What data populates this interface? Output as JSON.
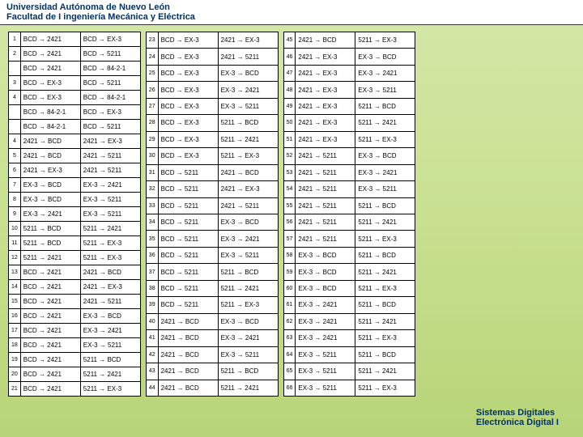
{
  "header": {
    "line1": "Universidad Autónoma de Nuevo León",
    "line2": "Facultad de I ingeniería Mecánica y Eléctrica"
  },
  "footer": {
    "line1": "Sistemas Digitales",
    "line2": "Electrónica Digital I"
  },
  "columns": [
    [
      {
        "n": "1",
        "a": "BCD → 2421",
        "b": "BCD → EX-3"
      },
      {
        "n": "2",
        "a": "BCD → 2421",
        "b": "BCD → 5211"
      },
      {
        "n": "",
        "a": "BCD → 2421",
        "b": "BCD → 84-2-1"
      },
      {
        "n": "3",
        "a": "BCD → EX-3",
        "b": "BCD → 5211"
      },
      {
        "n": "4",
        "a": "BCD → EX-3",
        "b": "BCD → 84-2-1"
      },
      {
        "n": "",
        "a": "BCD → 84-2-1",
        "b": "BCD → EX-3"
      },
      {
        "n": "",
        "a": "BCD → 84-2-1",
        "b": "BCD → 5211"
      },
      {
        "n": "4",
        "a": "2421 → BCD",
        "b": "2421 → EX-3"
      },
      {
        "n": "5",
        "a": "2421 → BCD",
        "b": "2421 → 5211"
      },
      {
        "n": "6",
        "a": "2421 → EX-3",
        "b": "2421 → 5211"
      },
      {
        "n": "7",
        "a": "EX-3 → BCD",
        "b": "EX-3 → 2421"
      },
      {
        "n": "8",
        "a": "EX-3 → BCD",
        "b": "EX-3 → 5211"
      },
      {
        "n": "9",
        "a": "EX-3 → 2421",
        "b": "EX-3 → 5211"
      },
      {
        "n": "10",
        "a": "5211 → BCD",
        "b": "5211 → 2421"
      },
      {
        "n": "11",
        "a": "5211 → BCD",
        "b": "5211 → EX-3"
      },
      {
        "n": "12",
        "a": "5211 → 2421",
        "b": "5211 → EX-3"
      },
      {
        "n": "13",
        "a": "BCD → 2421",
        "b": "2421 → BCD"
      },
      {
        "n": "14",
        "a": "BCD → 2421",
        "b": "2421 → EX-3"
      },
      {
        "n": "15",
        "a": "BCD → 2421",
        "b": "2421 → 5211"
      },
      {
        "n": "16",
        "a": "BCD → 2421",
        "b": "EX-3 → BCD"
      },
      {
        "n": "17",
        "a": "BCD → 2421",
        "b": "EX-3 → 2421"
      },
      {
        "n": "18",
        "a": "BCD → 2421",
        "b": "EX-3 → 5211"
      },
      {
        "n": "19",
        "a": "BCD → 2421",
        "b": "5211 → BCD"
      },
      {
        "n": "20",
        "a": "BCD → 2421",
        "b": "5211 → 2421"
      },
      {
        "n": "21",
        "a": "BCD → 2421",
        "b": "5211 → EX-3"
      }
    ],
    [
      {
        "n": "23",
        "a": "BCD → EX-3",
        "b": "2421 → EX-3"
      },
      {
        "n": "24",
        "a": "BCD → EX-3",
        "b": "2421 → 5211"
      },
      {
        "n": "25",
        "a": "BCD → EX-3",
        "b": "EX-3 → BCD"
      },
      {
        "n": "26",
        "a": "BCD → EX-3",
        "b": "EX-3 → 2421"
      },
      {
        "n": "27",
        "a": "BCD → EX-3",
        "b": "EX-3 → 5211"
      },
      {
        "n": "28",
        "a": "BCD → EX-3",
        "b": "5211 → BCD"
      },
      {
        "n": "29",
        "a": "BCD → EX-3",
        "b": "5211 → 2421"
      },
      {
        "n": "30",
        "a": "BCD → EX-3",
        "b": "5211 → EX-3"
      },
      {
        "n": "31",
        "a": "BCD → 5211",
        "b": "2421 → BCD"
      },
      {
        "n": "32",
        "a": "BCD → 5211",
        "b": "2421 → EX-3"
      },
      {
        "n": "33",
        "a": "BCD → 5211",
        "b": "2421 → 5211"
      },
      {
        "n": "34",
        "a": "BCD → 5211",
        "b": "EX-3 → BCD"
      },
      {
        "n": "35",
        "a": "BCD → 5211",
        "b": "EX-3 → 2421"
      },
      {
        "n": "36",
        "a": "BCD → 5211",
        "b": "EX-3 → 5211"
      },
      {
        "n": "37",
        "a": "BCD → 5211",
        "b": "5211 → BCD"
      },
      {
        "n": "38",
        "a": "BCD → 5211",
        "b": "5211 → 2421"
      },
      {
        "n": "39",
        "a": "BCD → 5211",
        "b": "5211 → EX-3"
      },
      {
        "n": "40",
        "a": "2421 → BCD",
        "b": "EX-3 → BCD"
      },
      {
        "n": "41",
        "a": "2421 → BCD",
        "b": "EX-3 → 2421"
      },
      {
        "n": "42",
        "a": "2421 → BCD",
        "b": "EX-3 → 5211"
      },
      {
        "n": "43",
        "a": "2421 → BCD",
        "b": "5211 → BCD"
      },
      {
        "n": "44",
        "a": "2421 → BCD",
        "b": "5211 → 2421"
      }
    ],
    [
      {
        "n": "45",
        "a": "2421 → BCD",
        "b": "5211 → EX-3"
      },
      {
        "n": "46",
        "a": "2421 → EX-3",
        "b": "EX-3 → BCD"
      },
      {
        "n": "47",
        "a": "2421 → EX-3",
        "b": "EX-3 → 2421"
      },
      {
        "n": "48",
        "a": "2421 → EX-3",
        "b": "EX-3 → 5211"
      },
      {
        "n": "49",
        "a": "2421 → EX-3",
        "b": "5211 → BCD"
      },
      {
        "n": "50",
        "a": "2421 → EX-3",
        "b": "5211 → 2421"
      },
      {
        "n": "51",
        "a": "2421 → EX-3",
        "b": "5211 → EX-3"
      },
      {
        "n": "52",
        "a": "2421 → 5211",
        "b": "EX-3 → BCD"
      },
      {
        "n": "53",
        "a": "2421 → 5211",
        "b": "EX-3 → 2421"
      },
      {
        "n": "54",
        "a": "2421 → 5211",
        "b": "EX-3 → 5211"
      },
      {
        "n": "55",
        "a": "2421 → 5211",
        "b": "5211 → BCD"
      },
      {
        "n": "56",
        "a": "2421 → 5211",
        "b": "5211 → 2421"
      },
      {
        "n": "57",
        "a": "2421 → 5211",
        "b": "5211 → EX-3"
      },
      {
        "n": "58",
        "a": "EX-3 → BCD",
        "b": "5211 → BCD"
      },
      {
        "n": "59",
        "a": "EX-3 → BCD",
        "b": "5211 → 2421"
      },
      {
        "n": "60",
        "a": "EX-3 → BCD",
        "b": "5211 → EX-3"
      },
      {
        "n": "61",
        "a": "EX-3 → 2421",
        "b": "5211 → BCD"
      },
      {
        "n": "62",
        "a": "EX-3 → 2421",
        "b": "5211 → 2421"
      },
      {
        "n": "63",
        "a": "EX-3 → 2421",
        "b": "5211 → EX-3"
      },
      {
        "n": "64",
        "a": "EX-3 → 5211",
        "b": "5211 → BCD"
      },
      {
        "n": "65",
        "a": "EX-3 → 5211",
        "b": "5211 → 2421"
      },
      {
        "n": "66",
        "a": "EX-3 → 5211",
        "b": "5211 → EX-3"
      }
    ]
  ]
}
